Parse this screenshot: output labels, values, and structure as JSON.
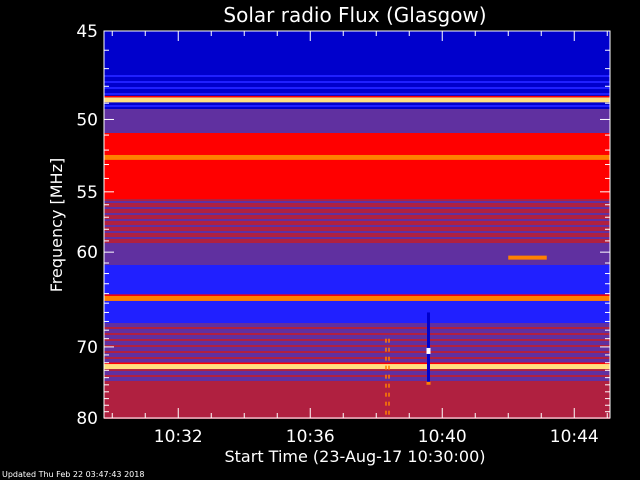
{
  "updated_text": "Updated Thu Feb 22 03:47:43 2018",
  "chart_data": {
    "type": "heatmap",
    "title": "Solar radio Flux (Glasgow)",
    "xlabel": "Start Time (23-Aug-17 10:30:00)",
    "ylabel": "Frequency [MHz]",
    "y_scale": "log",
    "xlim": [
      "10:29:45",
      "10:45:05"
    ],
    "ylim": [
      45,
      80
    ],
    "x_ticks": [
      "10:32",
      "10:36",
      "10:40",
      "10:44"
    ],
    "y_ticks": [
      45,
      50,
      55,
      60,
      70,
      80
    ],
    "colormap": [
      "#000000",
      "#0000cc",
      "#2020ff",
      "#6030a0",
      "#b02040",
      "#ff0000",
      "#ff8000",
      "#ffe080",
      "#ffffff"
    ],
    "features": [
      {
        "name": "interference band",
        "freq_mhz": 48.8,
        "level": "very high"
      },
      {
        "name": "interference band",
        "freq_mhz": 52.5,
        "level": "high"
      },
      {
        "name": "interference band",
        "freq_mhz": 64.5,
        "level": "high"
      },
      {
        "name": "interference band",
        "freq_mhz": 72.5,
        "level": "very high"
      },
      {
        "name": "noise burst",
        "time": "10:39:35",
        "freq_range_mhz": [
          66,
          75
        ],
        "level": "spike"
      },
      {
        "name": "noise burst",
        "time": "10:38:20",
        "freq_range_mhz": [
          69,
          80
        ],
        "level": "moderate"
      },
      {
        "name": "patch",
        "time_range": [
          "10:42:00",
          "10:43:10"
        ],
        "freq_mhz": 60.5,
        "level": "high"
      }
    ]
  }
}
